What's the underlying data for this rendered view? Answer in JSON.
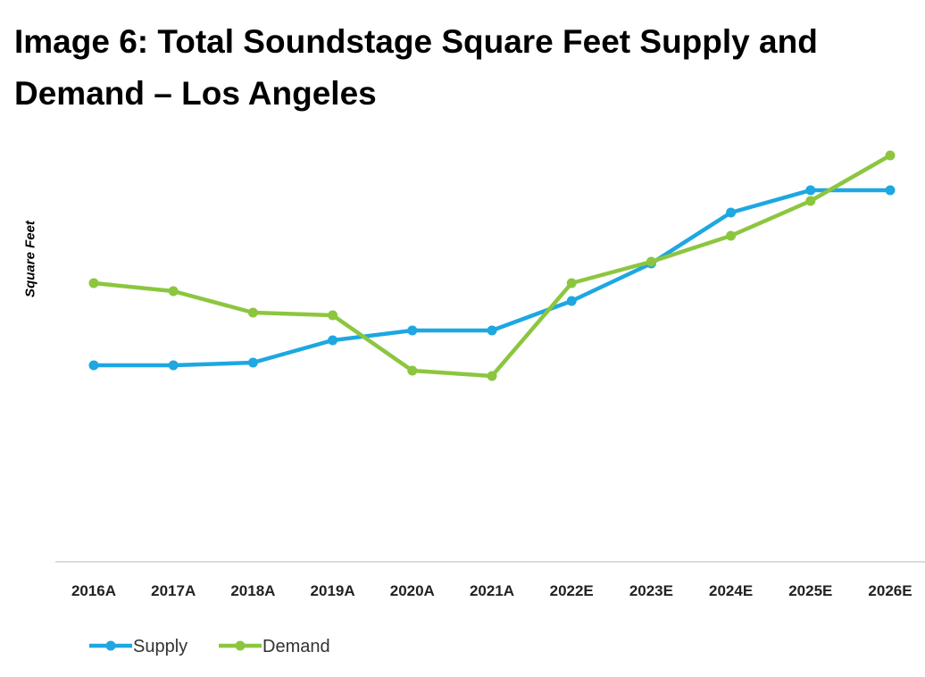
{
  "chart_data": {
    "type": "line",
    "title": "Image 6: Total Soundstage Square Feet Supply and Demand – Los Angeles",
    "xlabel": "",
    "ylabel": "Square Feet",
    "categories": [
      "2016A",
      "2017A",
      "2018A",
      "2019A",
      "2020A",
      "2021A",
      "2022E",
      "2023E",
      "2024E",
      "2025E",
      "2026E"
    ],
    "ylim": [
      0,
      500
    ],
    "y_units_note": "relative (no y-axis tick values shown)",
    "grid": false,
    "legend": "bottom-left",
    "series": [
      {
        "name": "Supply",
        "color": "#1ea7e1",
        "values": [
          220,
          220,
          223,
          248,
          259,
          259,
          292,
          334,
          391,
          416,
          416
        ]
      },
      {
        "name": "Demand",
        "color": "#8cc63f",
        "values": [
          312,
          303,
          279,
          276,
          214,
          208,
          312,
          336,
          365,
          404,
          455
        ]
      }
    ]
  }
}
